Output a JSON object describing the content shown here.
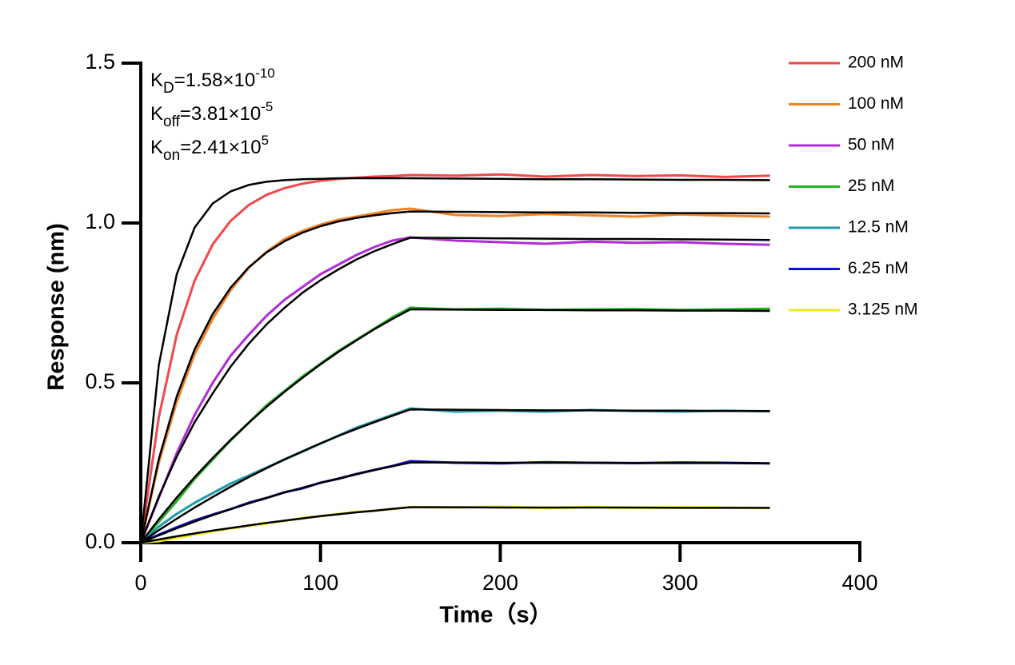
{
  "chart_data": {
    "type": "line",
    "y_label": "Response (nm)",
    "x_label": "Time（s）",
    "annotations": [
      {
        "symbol": "K",
        "sub": "D",
        "text": "=1.58×10",
        "sup": "-10"
      },
      {
        "symbol": "K",
        "sub": "off",
        "text": "=3.81×10",
        "sup": "-5"
      },
      {
        "symbol": "K",
        "sub": "on",
        "text": "=2.41×10",
        "sup": "5"
      }
    ],
    "xlim": [
      0,
      400
    ],
    "xticks": [
      0,
      100,
      200,
      300,
      400
    ],
    "ylim": [
      0,
      1.5
    ],
    "yticks": [
      {
        "value": 0,
        "label": "0.0"
      },
      0.5,
      {
        "value": 1,
        "label": "1.0"
      },
      1.5
    ],
    "legend": "right",
    "x": [
      0,
      10,
      20,
      30,
      40,
      50,
      60,
      70,
      80,
      90,
      100,
      110,
      120,
      130,
      140,
      150,
      175,
      200,
      225,
      250,
      275,
      300,
      325,
      350
    ],
    "series": [
      {
        "name": "200 nM",
        "color": "#f0484b",
        "values": [
          0,
          0.392,
          0.65,
          0.82,
          0.933,
          1.007,
          1.056,
          1.088,
          1.109,
          1.123,
          1.132,
          1.138,
          1.142,
          1.145,
          1.147,
          1.15,
          1.148,
          1.152,
          1.145,
          1.15,
          1.147,
          1.149,
          1.144,
          1.148
        ]
      },
      {
        "name": "100 nM",
        "color": "#f58220",
        "values": [
          0,
          0.25,
          0.44,
          0.59,
          0.7,
          0.79,
          0.86,
          0.91,
          0.95,
          0.975,
          0.995,
          1.01,
          1.02,
          1.03,
          1.04,
          1.045,
          1.025,
          1.022,
          1.028,
          1.024,
          1.02,
          1.027,
          1.023,
          1.02
        ]
      },
      {
        "name": "50 nM",
        "color": "#b12ad8",
        "values": [
          0,
          0.14,
          0.28,
          0.4,
          0.5,
          0.585,
          0.65,
          0.71,
          0.76,
          0.8,
          0.84,
          0.87,
          0.9,
          0.925,
          0.945,
          0.955,
          0.945,
          0.94,
          0.935,
          0.942,
          0.938,
          0.94,
          0.935,
          0.932
        ]
      },
      {
        "name": "25 nM",
        "color": "#22b522",
        "values": [
          0,
          0.065,
          0.13,
          0.2,
          0.26,
          0.32,
          0.375,
          0.43,
          0.475,
          0.52,
          0.56,
          0.6,
          0.635,
          0.67,
          0.705,
          0.735,
          0.73,
          0.732,
          0.728,
          0.73,
          0.731,
          0.728,
          0.73,
          0.732
        ]
      },
      {
        "name": "12.5 nM",
        "color": "#1f9aa8",
        "values": [
          0,
          0.05,
          0.09,
          0.125,
          0.155,
          0.185,
          0.21,
          0.235,
          0.26,
          0.285,
          0.31,
          0.335,
          0.36,
          0.38,
          0.4,
          0.42,
          0.41,
          0.413,
          0.41,
          0.415,
          0.412,
          0.41,
          0.413,
          0.411
        ]
      },
      {
        "name": "6.25 nM",
        "color": "#1010e0",
        "values": [
          0,
          0.025,
          0.048,
          0.07,
          0.088,
          0.105,
          0.125,
          0.14,
          0.158,
          0.17,
          0.188,
          0.2,
          0.215,
          0.228,
          0.24,
          0.255,
          0.25,
          0.248,
          0.252,
          0.25,
          0.249,
          0.251,
          0.25,
          0.248
        ]
      },
      {
        "name": "3.125 nM",
        "color": "#f2ea1c",
        "values": [
          0,
          0.005,
          0.015,
          0.025,
          0.035,
          0.045,
          0.052,
          0.06,
          0.068,
          0.078,
          0.083,
          0.09,
          0.097,
          0.1,
          0.105,
          0.112,
          0.11,
          0.113,
          0.108,
          0.112,
          0.109,
          0.111,
          0.11,
          0.108
        ]
      }
    ],
    "fits": [
      {
        "color": "#000000",
        "values": [
          0,
          0.555,
          0.839,
          0.986,
          1.061,
          1.099,
          1.119,
          1.129,
          1.134,
          1.137,
          1.138,
          1.14,
          1.14,
          1.14,
          1.14,
          1.14,
          1.139,
          1.138,
          1.137,
          1.137,
          1.136,
          1.135,
          1.135,
          1.134
        ]
      },
      {
        "color": "#000000",
        "values": [
          0,
          0.261,
          0.457,
          0.605,
          0.715,
          0.798,
          0.861,
          0.908,
          0.943,
          0.97,
          0.99,
          1.005,
          1.016,
          1.024,
          1.031,
          1.036,
          1.035,
          1.034,
          1.033,
          1.033,
          1.032,
          1.031,
          1.031,
          1.03
        ]
      },
      {
        "color": "#000000",
        "values": [
          0,
          0.144,
          0.269,
          0.377,
          0.467,
          0.551,
          0.622,
          0.683,
          0.735,
          0.782,
          0.821,
          0.855,
          0.886,
          0.912,
          0.934,
          0.954,
          0.953,
          0.952,
          0.951,
          0.95,
          0.95,
          0.949,
          0.948,
          0.947
        ]
      },
      {
        "color": "#000000",
        "values": [
          0,
          0.073,
          0.141,
          0.205,
          0.265,
          0.322,
          0.375,
          0.425,
          0.472,
          0.516,
          0.558,
          0.597,
          0.633,
          0.668,
          0.7,
          0.73,
          0.729,
          0.728,
          0.728,
          0.727,
          0.727,
          0.726,
          0.726,
          0.725
        ]
      },
      {
        "color": "#000000",
        "values": [
          0,
          0.039,
          0.075,
          0.11,
          0.143,
          0.175,
          0.205,
          0.233,
          0.261,
          0.286,
          0.311,
          0.334,
          0.356,
          0.377,
          0.397,
          0.417,
          0.416,
          0.415,
          0.414,
          0.414,
          0.413,
          0.413,
          0.412,
          0.412
        ]
      },
      {
        "color": "#000000",
        "values": [
          0,
          0.023,
          0.045,
          0.066,
          0.086,
          0.105,
          0.123,
          0.14,
          0.157,
          0.172,
          0.187,
          0.201,
          0.214,
          0.227,
          0.239,
          0.251,
          0.251,
          0.25,
          0.25,
          0.25,
          0.249,
          0.249,
          0.249,
          0.248
        ]
      },
      {
        "color": "#000000",
        "values": [
          0,
          0.01,
          0.02,
          0.029,
          0.038,
          0.046,
          0.054,
          0.062,
          0.069,
          0.076,
          0.083,
          0.089,
          0.095,
          0.1,
          0.106,
          0.111,
          0.111,
          0.11,
          0.11,
          0.11,
          0.11,
          0.109,
          0.109,
          0.109
        ]
      }
    ]
  }
}
